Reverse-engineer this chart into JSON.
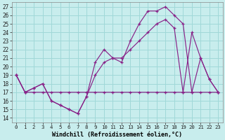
{
  "xlabel": "Windchill (Refroidissement éolien,°C)",
  "ylabel_ticks": [
    14,
    15,
    16,
    17,
    18,
    19,
    20,
    21,
    22,
    23,
    24,
    25,
    26,
    27
  ],
  "xtick_labels": [
    "0",
    "1",
    "2",
    "3",
    "4",
    "5",
    "6",
    "7",
    "8",
    "9",
    "10",
    "11",
    "12",
    "13",
    "14",
    "15",
    "16",
    "17",
    "18",
    "19",
    "20",
    "21",
    "22",
    "23"
  ],
  "ylim": [
    13.5,
    27.5
  ],
  "xlim": [
    -0.5,
    23.5
  ],
  "background_color": "#c8eded",
  "grid_color": "#a0d8d8",
  "line_color": "#882288",
  "line1_y": [
    19,
    17,
    17.5,
    18,
    16,
    15.5,
    15,
    14.5,
    16.5,
    20.5,
    22,
    21,
    20.5,
    23,
    25,
    26.5,
    26.5,
    27,
    26,
    25,
    17,
    21,
    18.5,
    17
  ],
  "line2_y": [
    19,
    17,
    17.5,
    18,
    16,
    15.5,
    15,
    14.5,
    16.5,
    19,
    20.5,
    21,
    21,
    22,
    23,
    24,
    25,
    25.5,
    24.5,
    17,
    24,
    21,
    18.5,
    17
  ],
  "line3_y": [
    19,
    17,
    17,
    17,
    17,
    17,
    17,
    17,
    17,
    17,
    17,
    17,
    17,
    17,
    17,
    17,
    17,
    17,
    17,
    17,
    17,
    17,
    17,
    17
  ]
}
